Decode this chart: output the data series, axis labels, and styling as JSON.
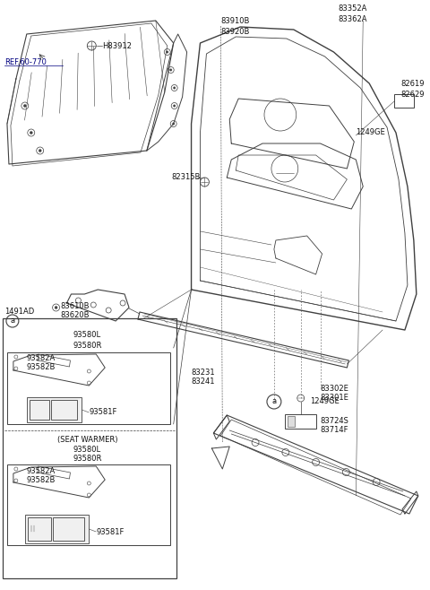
{
  "bg_color": "#ffffff",
  "line_color": "#404040",
  "text_color": "#111111",
  "fs": 6.0,
  "labels": {
    "ref": "REF.60-770",
    "H83912": "H83912",
    "p83910B": "83910B",
    "p83920B": "83920B",
    "p83352A": "83352A",
    "p83362A": "83362A",
    "p83724S": "83724S",
    "p83714F": "83714F",
    "p1249GE_top": "1249GE",
    "p83302E": "83302E",
    "p83301E": "83301E",
    "p83231": "83231",
    "p83241": "83241",
    "p1491AD": "1491AD",
    "p83610B": "83610B",
    "p83620B": "83620B",
    "circle_a": "a",
    "p93580L_1": "93580L",
    "p93580R_1": "93580R",
    "p93582A_1": "93582A",
    "p93582B_1": "93582B",
    "p93581F_1": "93581F",
    "seat_warmer": "(SEAT WARMER)",
    "p93580L_2": "93580L",
    "p93580R_2": "93580R",
    "p93582A_2": "93582A",
    "p93582B_2": "93582B",
    "p93581F_2": "93581F",
    "p82315B": "82315B",
    "p1249GE_bot": "1249GE",
    "p82619": "82619",
    "p82629": "82629"
  }
}
